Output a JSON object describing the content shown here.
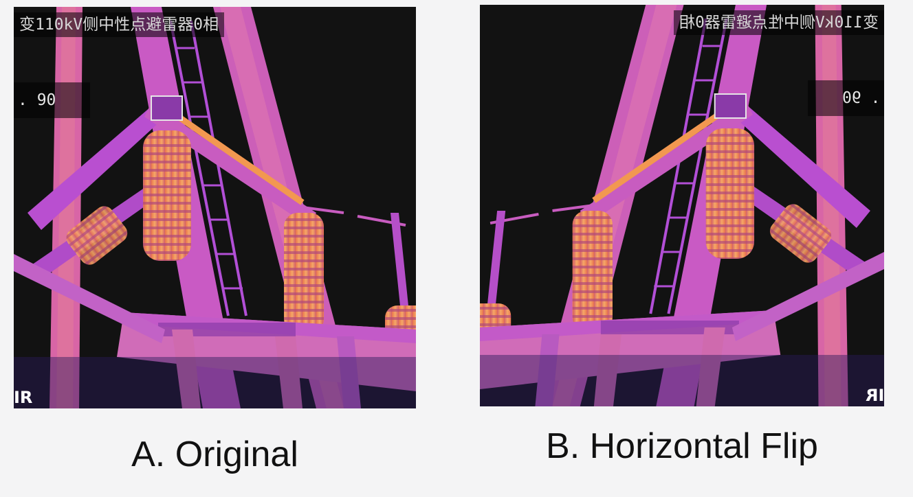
{
  "panels": {
    "a": {
      "caption": "A. Original",
      "overlay_title": "变110kV侧中性点避雷器0相",
      "overlay_value": ". 90",
      "logo": "IR"
    },
    "b": {
      "caption": "B. Horizontal Flip",
      "overlay_title": "变110kV侧中性点避雷器0相",
      "overlay_value": ". 90",
      "logo": "IR"
    }
  },
  "palette": {
    "background": "#111111",
    "structure": "#c24fd0",
    "hot": "#f09050",
    "warm": "#e66aa0"
  }
}
